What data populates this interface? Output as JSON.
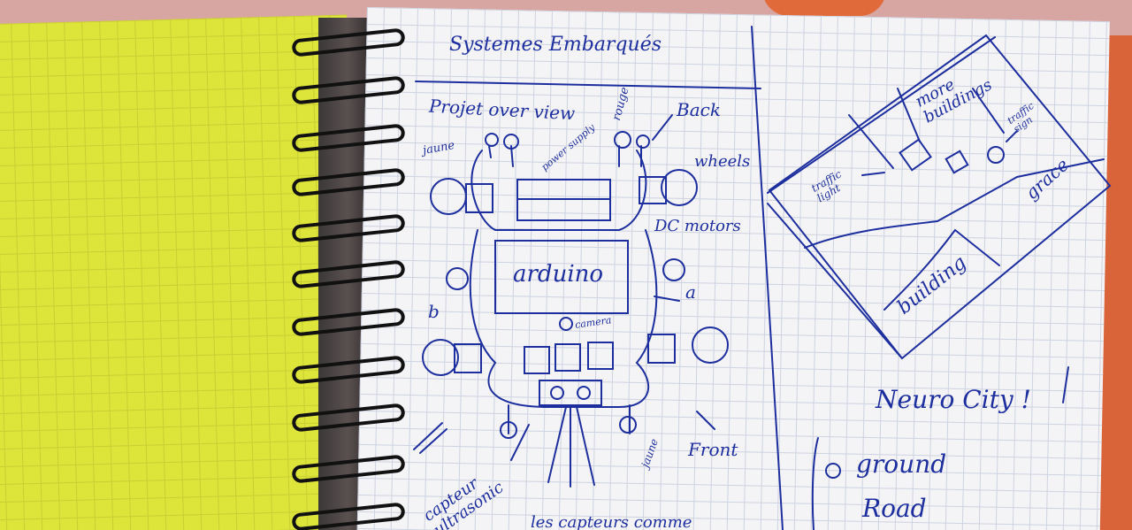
{
  "notebook": {
    "page_title": "Systemes Embarqués",
    "left_panel": {
      "heading": "Projet over view",
      "labels": {
        "rouge": "rouge",
        "back": "Back",
        "jaune_top": "jaune",
        "power_supply": "power supply",
        "wheels": "wheels",
        "dc_motors": "DC motors",
        "arduino": "arduino",
        "a": "a",
        "b": "b",
        "camera": "camera",
        "front": "Front",
        "jaune_bottom": "jaune",
        "capteur_ultrasonic": "capteur ultrasonic",
        "bottom_line": "les capteurs comme"
      }
    },
    "right_panel": {
      "map_labels": {
        "more_buildings": "more buildings",
        "traffic_light": "traffic light",
        "traffic_sign": "traffic sign",
        "grace": "grace",
        "building": "building"
      },
      "project_title": "Neuro City !",
      "list": [
        "ground",
        "Road"
      ]
    }
  },
  "colors": {
    "ink": "#1d2f9e",
    "yellow_page": "#dde43a",
    "grid_page": "#f4f3f6",
    "table": "#d8a6a2",
    "orange_object": "#e06a3a"
  }
}
